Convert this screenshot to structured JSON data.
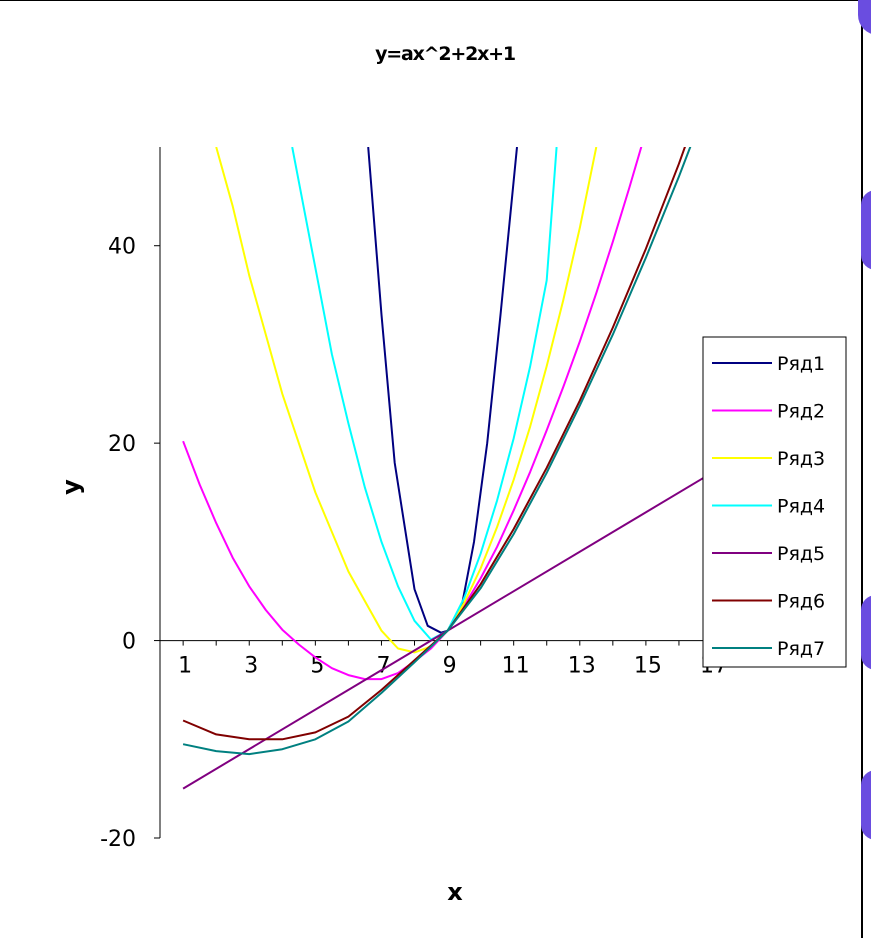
{
  "chart_data": {
    "type": "line",
    "title": "y=ax^2+2x+1",
    "xlabel": "x",
    "ylabel": "y",
    "ylim": [
      -20,
      50
    ],
    "xlim": [
      0.3,
      17
    ],
    "y_ticks": [
      "40",
      "20",
      "0",
      "-20"
    ],
    "y_tick_values": [
      40,
      20,
      0,
      -20
    ],
    "x_ticks": [
      "1",
      "3",
      "5",
      "7",
      "9",
      "11",
      "13",
      "15",
      "17"
    ],
    "x_tick_values": [
      1,
      3,
      5,
      7,
      9,
      11,
      13,
      15,
      17
    ],
    "grid": false,
    "legend_position": "right",
    "series": [
      {
        "name": "Ряд1",
        "color": "#000080",
        "x": [
          6.6,
          7,
          7.4,
          8,
          8.4,
          8.8,
          9,
          9.4,
          9.8,
          10.2,
          10.6,
          11.1
        ],
        "values": [
          50,
          33,
          18,
          5.2,
          1.5,
          0.8,
          1,
          3,
          10,
          20,
          33,
          50
        ]
      },
      {
        "name": "Ряд2",
        "color": "#ff00ff",
        "x": [
          1,
          1.5,
          2,
          2.5,
          3,
          3.5,
          4,
          4.5,
          5,
          5.5,
          6,
          6.5,
          7,
          7.5,
          8,
          8.5,
          9,
          9.5,
          10,
          10.5,
          11,
          11.5,
          12,
          12.5,
          13,
          13.5,
          14,
          14.5,
          15
        ],
        "values": [
          20.2,
          15.8,
          11.9,
          8.4,
          5.5,
          3.1,
          1.1,
          -0.4,
          -1.7,
          -2.8,
          -3.5,
          -3.9,
          -3.9,
          -3.3,
          -2.1,
          -0.8,
          1,
          3.5,
          6.3,
          9.5,
          13.2,
          17.1,
          21.3,
          25.7,
          30.3,
          35.2,
          40.4,
          45.9,
          51.6
        ]
      },
      {
        "name": "Ряд3",
        "color": "#ffff00",
        "x": [
          2,
          2.5,
          3,
          3.5,
          4,
          4.5,
          5,
          5.5,
          6,
          6.5,
          7,
          7.5,
          8,
          8.5,
          9,
          9.5,
          10,
          10.5,
          11,
          11.5,
          12,
          12.5,
          13,
          13.5
        ],
        "values": [
          50,
          44,
          37,
          31,
          25,
          20,
          15,
          11,
          7,
          4,
          1,
          -0.8,
          -1.2,
          -0.6,
          1,
          3.8,
          7.3,
          11.5,
          16.3,
          21.7,
          27.8,
          34.5,
          41.8,
          50
        ]
      },
      {
        "name": "Ряд4",
        "color": "#00ffff",
        "x": [
          4.3,
          4.7,
          5.1,
          5.5,
          6,
          6.5,
          7,
          7.5,
          8,
          8.5,
          9,
          9.5,
          10,
          10.5,
          11,
          11.5,
          12,
          12.3
        ],
        "values": [
          50,
          43,
          36,
          29,
          22,
          15.5,
          10,
          5.5,
          2,
          0.1,
          1,
          4.3,
          8.8,
          14.2,
          20.5,
          27.8,
          36.5,
          50
        ]
      },
      {
        "name": "Ряд5",
        "color": "#800080",
        "x": [
          1,
          17
        ],
        "values": [
          -15,
          17
        ]
      },
      {
        "name": "Ряд6",
        "color": "#800000",
        "x": [
          1,
          2,
          3,
          4,
          5,
          6,
          7,
          8,
          9,
          10,
          11,
          12,
          13,
          14,
          15,
          16,
          16.5
        ],
        "values": [
          -8.1,
          -9.5,
          -10,
          -10,
          -9.3,
          -7.7,
          -5,
          -2,
          1,
          5.7,
          11.3,
          17.5,
          24.3,
          31.7,
          39.7,
          48.3,
          53
        ]
      },
      {
        "name": "Ряд7",
        "color": "#008080",
        "x": [
          1,
          2,
          3,
          4,
          5,
          6,
          7,
          8,
          9,
          10,
          11,
          12,
          13,
          14,
          15,
          16,
          16.8
        ],
        "values": [
          -10.5,
          -11.2,
          -11.5,
          -11,
          -10,
          -8.2,
          -5.3,
          -2.2,
          1,
          5.3,
          10.8,
          17,
          23.8,
          31,
          38.8,
          47,
          54
        ]
      }
    ]
  }
}
